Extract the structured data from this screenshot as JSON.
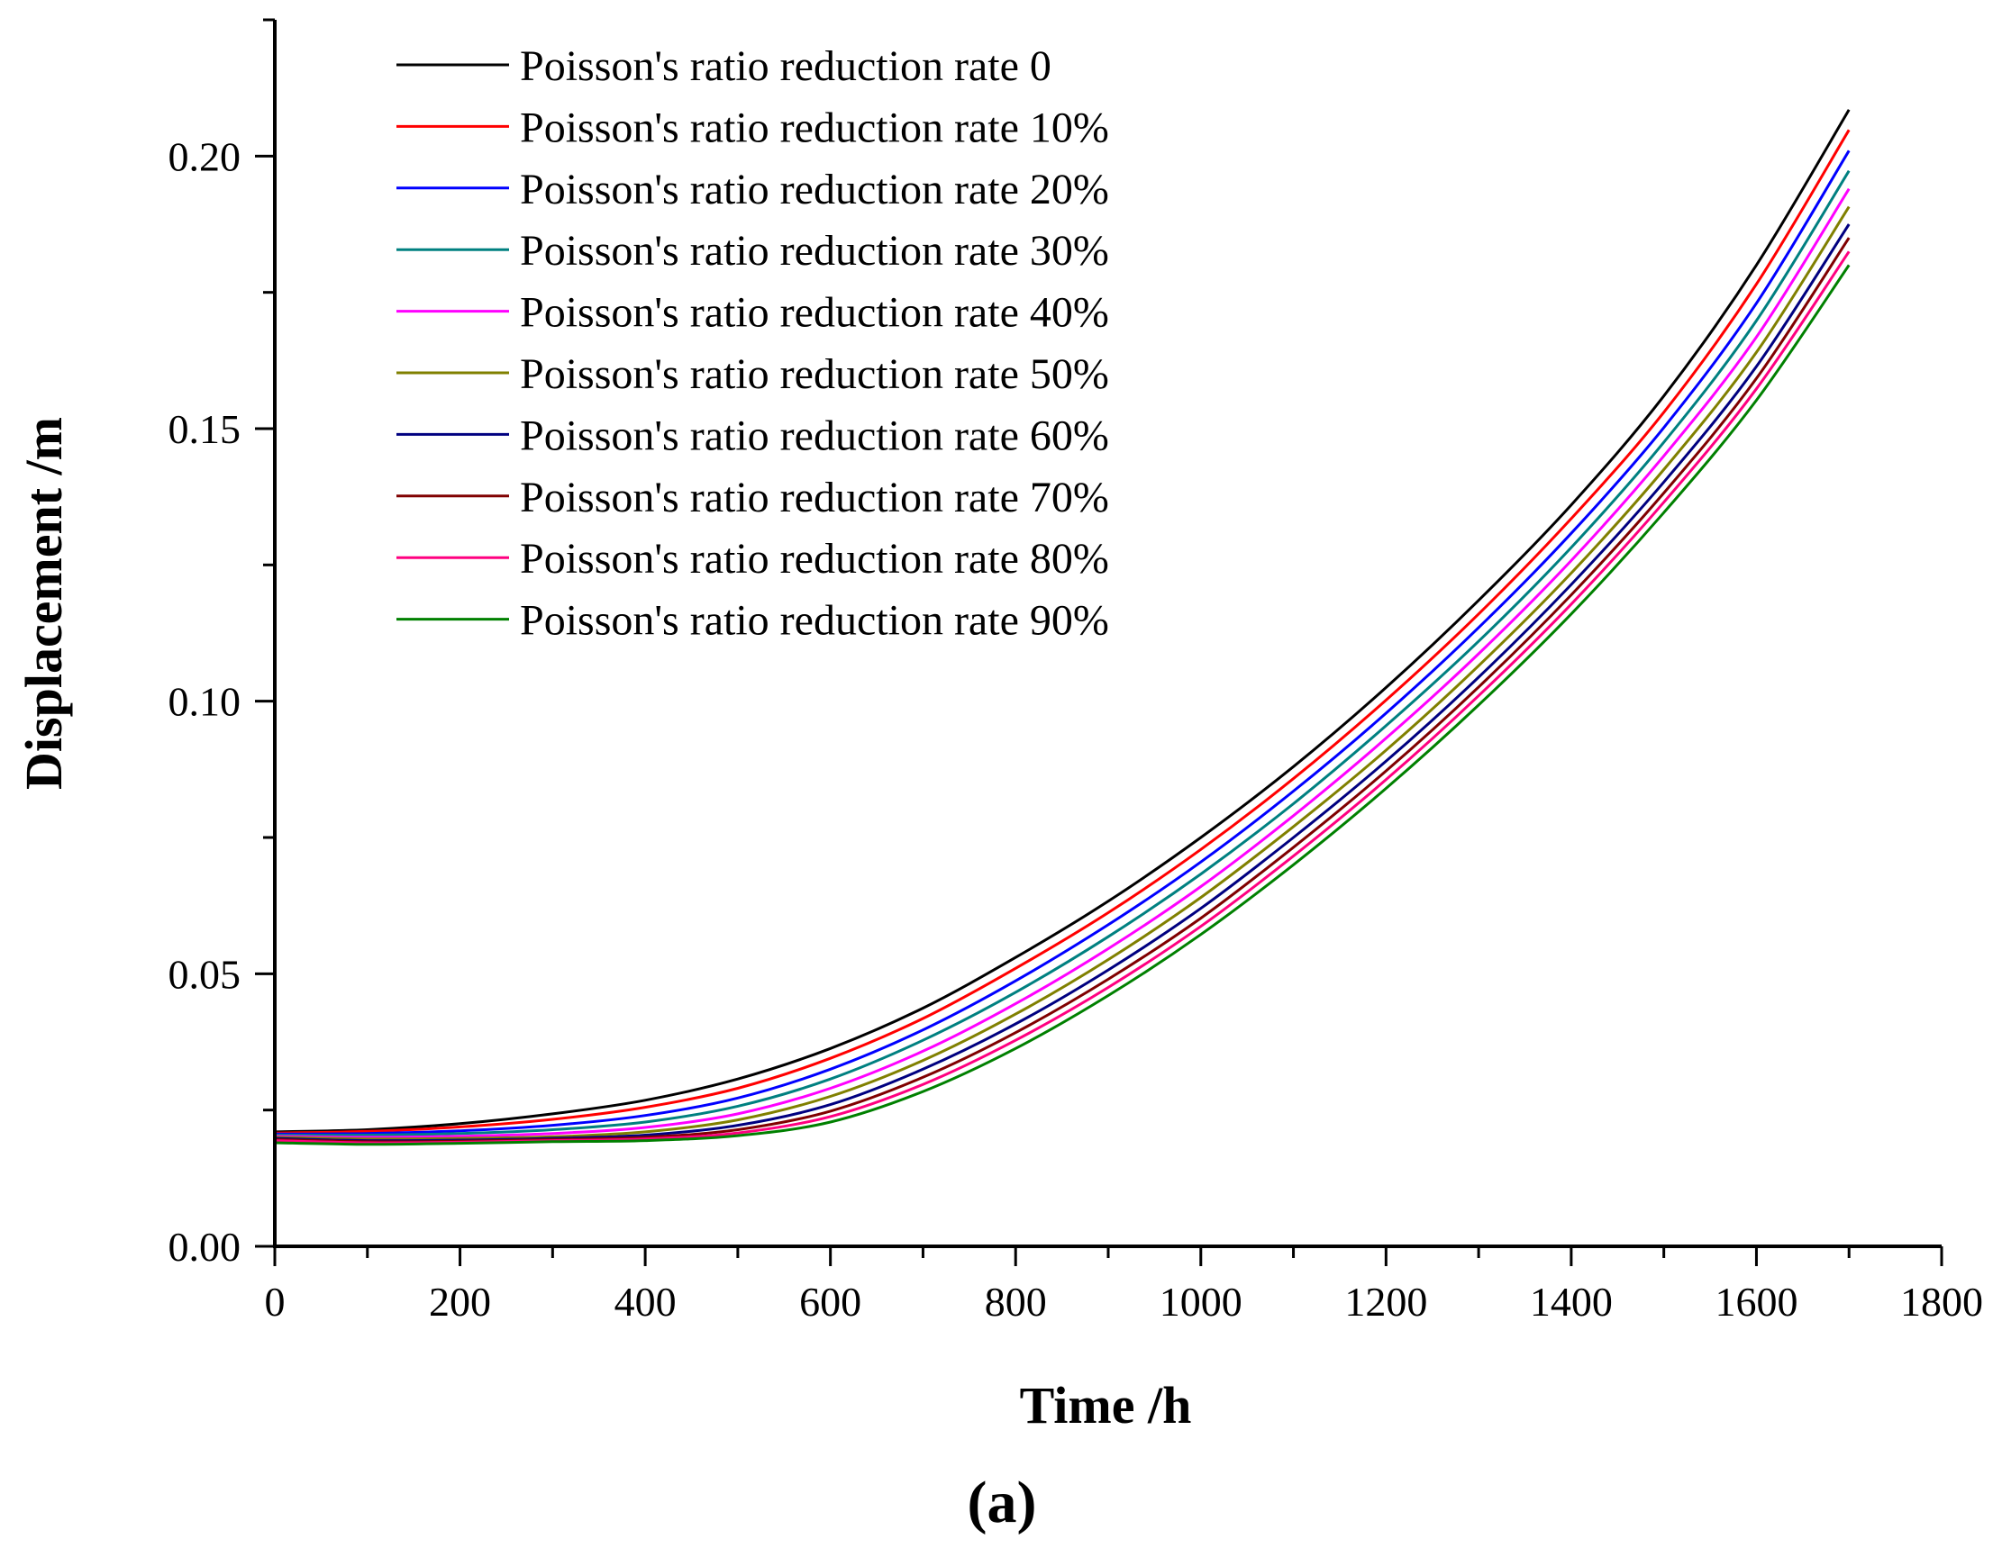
{
  "chart_data": {
    "type": "line",
    "title": "",
    "panel_label": "(a)",
    "xlabel": "Time /h",
    "ylabel": "Displacement /m",
    "xlim": [
      0,
      1800
    ],
    "ylim": [
      0,
      0.225
    ],
    "x_ticks": [
      0,
      200,
      400,
      600,
      800,
      1000,
      1200,
      1400,
      1600,
      1800
    ],
    "x_tick_labels": [
      "0",
      "200",
      "400",
      "600",
      "800",
      "1000",
      "1200",
      "1400",
      "1600",
      "1800"
    ],
    "y_ticks": [
      0,
      0.05,
      0.1,
      0.15,
      0.2
    ],
    "y_tick_labels": [
      "0.00",
      "0.05",
      "0.10",
      "0.15",
      "0.20"
    ],
    "grid": false,
    "legend_position": "top-left",
    "x": [
      0,
      100,
      200,
      300,
      400,
      500,
      600,
      700,
      800,
      900,
      1000,
      1100,
      1200,
      1300,
      1400,
      1500,
      1600,
      1700
    ],
    "series": [
      {
        "name": "Poisson's ratio reduction rate 0",
        "color": "#000000",
        "values": [
          0.021,
          0.0214,
          0.0225,
          0.0243,
          0.0268,
          0.0307,
          0.0363,
          0.0437,
          0.053,
          0.0633,
          0.075,
          0.088,
          0.1025,
          0.1185,
          0.136,
          0.156,
          0.18,
          0.2085
        ]
      },
      {
        "name": "Poisson's ratio reduction rate 10%",
        "color": "#ff0000",
        "values": [
          0.0208,
          0.0211,
          0.0219,
          0.0233,
          0.0255,
          0.029,
          0.0345,
          0.0418,
          0.051,
          0.0612,
          0.0728,
          0.0858,
          0.1002,
          0.116,
          0.1335,
          0.153,
          0.1765,
          0.2048
        ]
      },
      {
        "name": "Poisson's ratio reduction rate 20%",
        "color": "#0000ff",
        "values": [
          0.0206,
          0.0207,
          0.0212,
          0.0222,
          0.024,
          0.0272,
          0.0325,
          0.0397,
          0.0487,
          0.059,
          0.0705,
          0.0835,
          0.0978,
          0.1135,
          0.1308,
          0.1502,
          0.173,
          0.201
        ]
      },
      {
        "name": "Poisson's ratio reduction rate 30%",
        "color": "#008080",
        "values": [
          0.0204,
          0.0204,
          0.0207,
          0.0214,
          0.0228,
          0.0257,
          0.0307,
          0.0378,
          0.0466,
          0.0568,
          0.0683,
          0.0812,
          0.0955,
          0.111,
          0.1282,
          0.1475,
          0.1698,
          0.1973
        ]
      },
      {
        "name": "Poisson's ratio reduction rate 40%",
        "color": "#ff00ff",
        "values": [
          0.0202,
          0.02,
          0.0202,
          0.0207,
          0.0218,
          0.0243,
          0.029,
          0.0358,
          0.0445,
          0.0546,
          0.066,
          0.079,
          0.0932,
          0.1087,
          0.1258,
          0.145,
          0.1668,
          0.194
        ]
      },
      {
        "name": "Poisson's ratio reduction rate 50%",
        "color": "#808000",
        "values": [
          0.02,
          0.0197,
          0.0198,
          0.0201,
          0.021,
          0.0232,
          0.0275,
          0.0341,
          0.0426,
          0.0526,
          0.064,
          0.077,
          0.091,
          0.1065,
          0.1235,
          0.1425,
          0.164,
          0.1907
        ]
      },
      {
        "name": "Poisson's ratio reduction rate 60%",
        "color": "#000080",
        "values": [
          0.0198,
          0.0194,
          0.0195,
          0.0198,
          0.0204,
          0.0222,
          0.026,
          0.0325,
          0.0408,
          0.0507,
          0.062,
          0.075,
          0.089,
          0.1044,
          0.1214,
          0.1402,
          0.1614,
          0.1875
        ]
      },
      {
        "name": "Poisson's ratio reduction rate 70%",
        "color": "#800000",
        "values": [
          0.0196,
          0.0192,
          0.0193,
          0.0196,
          0.02,
          0.0214,
          0.0248,
          0.031,
          0.0392,
          0.049,
          0.0602,
          0.0732,
          0.0872,
          0.1026,
          0.1195,
          0.1382,
          0.1592,
          0.185
        ]
      },
      {
        "name": "Poisson's ratio reduction rate 80%",
        "color": "#ff0080",
        "values": [
          0.0194,
          0.019,
          0.0191,
          0.0194,
          0.0197,
          0.0208,
          0.0238,
          0.0297,
          0.0378,
          0.0475,
          0.0587,
          0.0716,
          0.0856,
          0.101,
          0.1178,
          0.1365,
          0.1573,
          0.1825
        ]
      },
      {
        "name": "Poisson's ratio reduction rate 90%",
        "color": "#008000",
        "values": [
          0.019,
          0.0187,
          0.0189,
          0.0192,
          0.0194,
          0.0203,
          0.0228,
          0.0284,
          0.0363,
          0.046,
          0.0572,
          0.07,
          0.084,
          0.0993,
          0.116,
          0.1346,
          0.1552,
          0.18
        ]
      }
    ]
  }
}
